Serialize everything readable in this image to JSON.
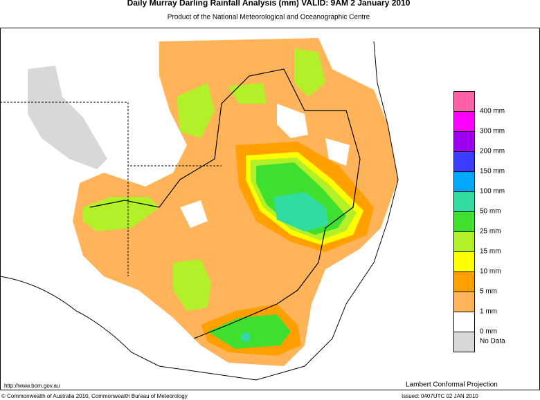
{
  "header": {
    "title": "Daily Murray Darling Rainfall Analysis (mm)  VALID: 9AM  2 January 2010",
    "subtitle": "Product of the National Meteorological and Oceanographic Centre"
  },
  "legend": [
    {
      "label": "400 mm",
      "color": "#ff60a8"
    },
    {
      "label": "300 mm",
      "color": "#ff00ff"
    },
    {
      "label": "200 mm",
      "color": "#a000f0"
    },
    {
      "label": "150 mm",
      "color": "#3c3cff"
    },
    {
      "label": "100 mm",
      "color": "#00a8ff"
    },
    {
      "label": "50 mm",
      "color": "#30dca0"
    },
    {
      "label": "25 mm",
      "color": "#40e030"
    },
    {
      "label": "15 mm",
      "color": "#b4f028"
    },
    {
      "label": "10 mm",
      "color": "#ffff00"
    },
    {
      "label": "5 mm",
      "color": "#ffa000"
    },
    {
      "label": "1 mm",
      "color": "#ffb45a"
    },
    {
      "label": "0 mm",
      "color": "#ffffff"
    },
    {
      "label": "No Data",
      "color": "#d8d8d8"
    }
  ],
  "footer": {
    "url": "http://www.bom.gov.au",
    "projection": "Lambert Conformal Projection",
    "copyright": "© Commonwealth of Australia 2010, Commonwealth Bureau of Meteorology",
    "issued": "Issued: 0407UTC 02 JAN 2010"
  }
}
